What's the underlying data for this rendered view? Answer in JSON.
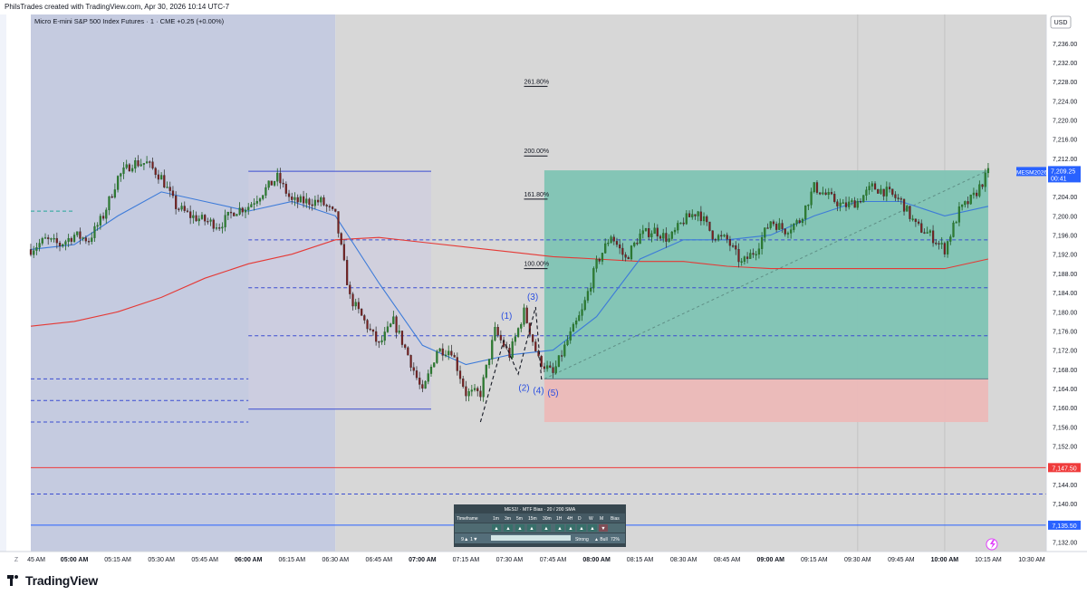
{
  "header": {
    "caption": "PhilsTrades created with TradingView.com, Apr 30, 2026 10:14 UTC-7"
  },
  "footer": {
    "brand": "TradingView"
  },
  "chart_data": {
    "type": "candlestick",
    "title": "Micro E-mini S&P 500 Index Futures · 1 · CME  +0.25 (+0.00%)",
    "currency": "USD",
    "symbol_tag": "MESM2026",
    "last_price": "7,209.25",
    "countdown": "00:41",
    "ylim": [
      7130,
      7242
    ],
    "y_ticks": [
      "7,132.00",
      "7,136.00",
      "7,140.00",
      "7,144.00",
      "7,148.00",
      "7,152.00",
      "7,156.00",
      "7,160.00",
      "7,164.00",
      "7,168.00",
      "7,172.00",
      "7,176.00",
      "7,180.00",
      "7,184.00",
      "7,188.00",
      "7,192.00",
      "7,196.00",
      "7,200.00",
      "7,204.00",
      "7,208.00",
      "7,212.00",
      "7,216.00",
      "7,220.00",
      "7,224.00",
      "7,228.00",
      "7,232.00",
      "7,236.00"
    ],
    "x_ticks": [
      {
        "t": "04:45",
        "label": "45 AM",
        "bold": false
      },
      {
        "t": "05:00",
        "label": "05:00 AM",
        "bold": true
      },
      {
        "t": "05:15",
        "label": "05:15 AM",
        "bold": false
      },
      {
        "t": "05:30",
        "label": "05:30 AM",
        "bold": false
      },
      {
        "t": "05:45",
        "label": "05:45 AM",
        "bold": false
      },
      {
        "t": "06:00",
        "label": "06:00 AM",
        "bold": true
      },
      {
        "t": "06:15",
        "label": "06:15 AM",
        "bold": false
      },
      {
        "t": "06:30",
        "label": "06:30 AM",
        "bold": false
      },
      {
        "t": "06:45",
        "label": "06:45 AM",
        "bold": false
      },
      {
        "t": "07:00",
        "label": "07:00 AM",
        "bold": true
      },
      {
        "t": "07:15",
        "label": "07:15 AM",
        "bold": false
      },
      {
        "t": "07:30",
        "label": "07:30 AM",
        "bold": false
      },
      {
        "t": "07:45",
        "label": "07:45 AM",
        "bold": false
      },
      {
        "t": "08:00",
        "label": "08:00 AM",
        "bold": true
      },
      {
        "t": "08:15",
        "label": "08:15 AM",
        "bold": false
      },
      {
        "t": "08:30",
        "label": "08:30 AM",
        "bold": false
      },
      {
        "t": "08:45",
        "label": "08:45 AM",
        "bold": false
      },
      {
        "t": "09:00",
        "label": "09:00 AM",
        "bold": true
      },
      {
        "t": "09:15",
        "label": "09:15 AM",
        "bold": false
      },
      {
        "t": "09:30",
        "label": "09:30 AM",
        "bold": false
      },
      {
        "t": "09:45",
        "label": "09:45 AM",
        "bold": false
      },
      {
        "t": "10:00",
        "label": "10:00 AM",
        "bold": true
      },
      {
        "t": "10:15",
        "label": "10:15 AM",
        "bold": false
      },
      {
        "t": "10:30",
        "label": "10:30 AM",
        "bold": false
      }
    ],
    "time_range": [
      "04:45",
      "10:15"
    ],
    "price_path": [
      [
        "04:45",
        7193
      ],
      [
        "04:50",
        7195
      ],
      [
        "04:55",
        7194
      ],
      [
        "05:00",
        7196
      ],
      [
        "05:05",
        7195
      ],
      [
        "05:10",
        7200
      ],
      [
        "05:15",
        7208
      ],
      [
        "05:20",
        7211
      ],
      [
        "05:25",
        7211
      ],
      [
        "05:30",
        7208
      ],
      [
        "05:35",
        7202
      ],
      [
        "05:40",
        7200
      ],
      [
        "05:45",
        7199
      ],
      [
        "05:50",
        7198
      ],
      [
        "05:55",
        7201
      ],
      [
        "06:00",
        7202
      ],
      [
        "06:05",
        7205
      ],
      [
        "06:10",
        7208
      ],
      [
        "06:15",
        7203
      ],
      [
        "06:20",
        7203
      ],
      [
        "06:25",
        7203
      ],
      [
        "06:30",
        7200
      ],
      [
        "06:35",
        7183
      ],
      [
        "06:40",
        7178
      ],
      [
        "06:45",
        7173
      ],
      [
        "06:50",
        7178
      ],
      [
        "06:55",
        7171
      ],
      [
        "07:00",
        7163
      ],
      [
        "07:05",
        7172
      ],
      [
        "07:10",
        7172
      ],
      [
        "07:15",
        7163
      ],
      [
        "07:20",
        7163
      ],
      [
        "07:25",
        7176
      ],
      [
        "07:30",
        7171
      ],
      [
        "07:35",
        7180
      ],
      [
        "07:40",
        7170
      ],
      [
        "07:45",
        7167
      ],
      [
        "07:50",
        7174
      ],
      [
        "07:55",
        7180
      ],
      [
        "08:00",
        7190
      ],
      [
        "08:05",
        7196
      ],
      [
        "08:10",
        7191
      ],
      [
        "08:15",
        7196
      ],
      [
        "08:20",
        7197
      ],
      [
        "08:25",
        7195
      ],
      [
        "08:30",
        7199
      ],
      [
        "08:35",
        7201
      ],
      [
        "08:40",
        7196
      ],
      [
        "08:45",
        7195
      ],
      [
        "08:50",
        7190
      ],
      [
        "08:55",
        7193
      ],
      [
        "09:00",
        7199
      ],
      [
        "09:05",
        7197
      ],
      [
        "09:10",
        7199
      ],
      [
        "09:15",
        7206
      ],
      [
        "09:20",
        7204
      ],
      [
        "09:25",
        7202
      ],
      [
        "09:30",
        7203
      ],
      [
        "09:35",
        7206
      ],
      [
        "09:40",
        7205
      ],
      [
        "09:45",
        7203
      ],
      [
        "09:50",
        7198
      ],
      [
        "09:55",
        7196
      ],
      [
        "10:00",
        7193
      ],
      [
        "10:05",
        7201
      ],
      [
        "10:10",
        7204
      ],
      [
        "10:15",
        7209
      ]
    ],
    "sma20_path": [
      [
        "04:45",
        7193
      ],
      [
        "05:00",
        7194
      ],
      [
        "05:15",
        7200
      ],
      [
        "05:30",
        7205
      ],
      [
        "05:45",
        7203
      ],
      [
        "06:00",
        7201
      ],
      [
        "06:15",
        7203
      ],
      [
        "06:30",
        7200
      ],
      [
        "06:45",
        7186
      ],
      [
        "07:00",
        7173
      ],
      [
        "07:15",
        7169
      ],
      [
        "07:30",
        7171
      ],
      [
        "07:45",
        7172
      ],
      [
        "08:00",
        7179
      ],
      [
        "08:15",
        7191
      ],
      [
        "08:30",
        7195
      ],
      [
        "08:45",
        7195
      ],
      [
        "09:00",
        7196
      ],
      [
        "09:15",
        7200
      ],
      [
        "09:30",
        7203
      ],
      [
        "09:45",
        7203
      ],
      [
        "10:00",
        7200
      ],
      [
        "10:15",
        7202
      ]
    ],
    "sma200_path": [
      [
        "04:45",
        7177
      ],
      [
        "05:00",
        7178
      ],
      [
        "05:15",
        7180
      ],
      [
        "05:30",
        7183
      ],
      [
        "05:45",
        7187
      ],
      [
        "06:00",
        7190
      ],
      [
        "06:15",
        7192
      ],
      [
        "06:30",
        7195
      ],
      [
        "06:45",
        7195.5
      ],
      [
        "07:00",
        7194.5
      ],
      [
        "07:15",
        7193.5
      ],
      [
        "07:30",
        7192.5
      ],
      [
        "07:45",
        7191.5
      ],
      [
        "08:00",
        7191
      ],
      [
        "08:15",
        7190.5
      ],
      [
        "08:30",
        7190.5
      ],
      [
        "08:45",
        7189.5
      ],
      [
        "09:00",
        7189
      ],
      [
        "09:15",
        7189
      ],
      [
        "09:30",
        7189
      ],
      [
        "09:45",
        7189
      ],
      [
        "10:00",
        7189
      ],
      [
        "10:15",
        7191
      ]
    ],
    "sessions": [
      {
        "from": "04:45",
        "to": "06:30",
        "color": "#c5cbe0"
      },
      {
        "from": "06:30",
        "to": "10:35",
        "color": "#d7d7d7"
      }
    ],
    "range_box": {
      "from": "06:00",
      "to": "07:03",
      "top": 7209.3,
      "bottom": 7159.7,
      "color": "#cfcde0"
    },
    "dashed_levels": [
      {
        "from": "04:45",
        "to": "05:00",
        "y": 7201,
        "color": "#26a69a"
      },
      {
        "from": "06:00",
        "to": "10:15",
        "y": 7195,
        "color": "#3b4dd1"
      },
      {
        "from": "06:00",
        "to": "10:15",
        "y": 7185,
        "color": "#3b4dd1"
      },
      {
        "from": "06:00",
        "to": "10:15",
        "y": 7175,
        "color": "#3b4dd1"
      },
      {
        "from": "04:45",
        "to": "06:00",
        "y": 7166,
        "color": "#3b4dd1"
      },
      {
        "from": "04:45",
        "to": "06:00",
        "y": 7161.5,
        "color": "#3b4dd1"
      },
      {
        "from": "04:45",
        "to": "06:00",
        "y": 7157,
        "color": "#3b4dd1"
      },
      {
        "from": "04:45",
        "to": "10:35",
        "y": 7142,
        "color": "#3b4dd1"
      }
    ],
    "horizontal_levels": [
      {
        "y": 7147.5,
        "label": "7,147.50",
        "color": "#ef3b3b"
      },
      {
        "y": 7135.5,
        "label": "7,135.50",
        "color": "#2962ff"
      }
    ],
    "position_box": {
      "from": "07:42",
      "to": "10:15",
      "entry": 7166,
      "target": 7209.5,
      "stop": 7157,
      "profit_color": "#7fc4b4",
      "loss_color": "#ecb9b8"
    },
    "fib_levels": [
      {
        "label": "261.80%",
        "y": 7227
      },
      {
        "label": "200.00%",
        "y": 7212.5
      },
      {
        "label": "161.80%",
        "y": 7203.5
      },
      {
        "label": "100.00%",
        "y": 7189
      }
    ],
    "fib_x": "07:35",
    "wave_labels": [
      {
        "text": "(1)",
        "t": "07:29",
        "y": 7178.5
      },
      {
        "text": "(2)",
        "t": "07:35",
        "y": 7163.5
      },
      {
        "text": "(3)",
        "t": "07:38",
        "y": 7182.5
      },
      {
        "text": "(4)",
        "t": "07:40",
        "y": 7163
      },
      {
        "text": "(5)",
        "t": "07:45",
        "y": 7162.5
      }
    ],
    "wave_path": [
      [
        "07:20",
        7157
      ],
      [
        "07:28",
        7174
      ],
      [
        "07:33",
        7167
      ],
      [
        "07:39",
        7181
      ],
      [
        "07:41",
        7166
      ],
      [
        "07:42",
        7166
      ]
    ],
    "mtf_table": {
      "title": "MES1! · MTF Bias · 20 / 200 SMA",
      "headers": [
        "Timeframe",
        "1m",
        "3m",
        "5m",
        "15m",
        "30m",
        "1H",
        "4H",
        "D",
        "W",
        "M",
        "Bias"
      ],
      "arrows": [
        "▲",
        "▲",
        "▲",
        "▲",
        "▲",
        "▲",
        "▲",
        "▲",
        "▲",
        "▼"
      ],
      "arrow_colors": [
        "#26a69a",
        "#26a69a",
        "#26a69a",
        "#26a69a",
        "#26a69a",
        "#26a69a",
        "#26a69a",
        "#26a69a",
        "#26a69a",
        "#ef5350"
      ],
      "counts": "9▲  1▼",
      "strength": "Strong",
      "bias": "▲ Bull",
      "pct": "72%"
    }
  }
}
